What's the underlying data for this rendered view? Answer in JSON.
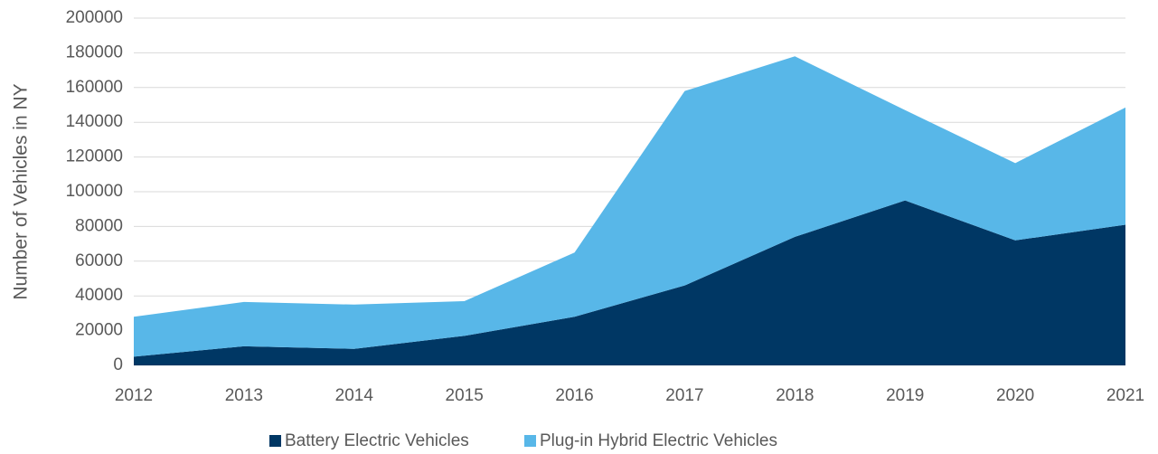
{
  "chart_data": {
    "type": "stacked_area",
    "y_label": "Number of Vehicles in NY",
    "categories": [
      "2012",
      "2013",
      "2014",
      "2015",
      "2016",
      "2017",
      "2018",
      "2019",
      "2020",
      "2021"
    ],
    "series": [
      {
        "name": "Battery Electric Vehicles",
        "color": "#003764",
        "values": [
          5000,
          11000,
          9500,
          17000,
          28000,
          46000,
          74000,
          95000,
          72000,
          81000
        ]
      },
      {
        "name": "Plug-in Hybrid Electric Vehicles",
        "color": "#58b7e8",
        "values": [
          23000,
          25500,
          25500,
          20000,
          37000,
          112000,
          104000,
          52000,
          44500,
          67500
        ]
      }
    ],
    "ylim": [
      0,
      200000
    ],
    "yticks": [
      0,
      20000,
      40000,
      60000,
      80000,
      100000,
      120000,
      140000,
      160000,
      180000,
      200000
    ],
    "grid": true,
    "legend": "bottom"
  }
}
